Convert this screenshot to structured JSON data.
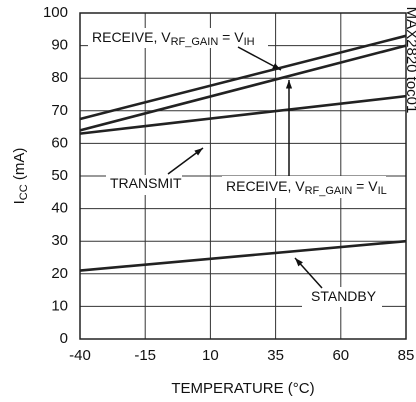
{
  "chart_data": {
    "type": "line",
    "xlabel": "TEMPERATURE (°C)",
    "ylabel_parts": [
      {
        "text": "I"
      },
      {
        "text": "CC",
        "sub": true
      },
      {
        "text": " (mA)"
      }
    ],
    "watermark": "MAX2820 toc01",
    "x": [
      -40,
      85
    ],
    "series": [
      {
        "name_parts": [
          {
            "text": "RECEIVE, V"
          },
          {
            "text": "RF_GAIN",
            "sub": true
          },
          {
            "text": " = V"
          },
          {
            "text": "IH",
            "sub": true
          }
        ],
        "color": "#222222",
        "values": [
          67.5,
          93
        ]
      },
      {
        "name_parts": [
          {
            "text": "RECEIVE, V"
          },
          {
            "text": "RF_GAIN",
            "sub": true
          },
          {
            "text": " = V"
          },
          {
            "text": "IL",
            "sub": true
          }
        ],
        "color": "#222222",
        "values": [
          64,
          90
        ]
      },
      {
        "name_parts": [
          {
            "text": "TRANSMIT"
          }
        ],
        "color": "#222222",
        "values": [
          63,
          74.5
        ]
      },
      {
        "name_parts": [
          {
            "text": "STANDBY"
          }
        ],
        "color": "#222222",
        "values": [
          21,
          30
        ]
      }
    ],
    "xlim": [
      -40,
      85
    ],
    "xticks": [
      -40,
      -15,
      10,
      35,
      60,
      85
    ],
    "ylim": [
      0,
      100
    ],
    "yticks": [
      0,
      10,
      20,
      30,
      40,
      50,
      60,
      70,
      80,
      90,
      100
    ],
    "grid": true
  }
}
